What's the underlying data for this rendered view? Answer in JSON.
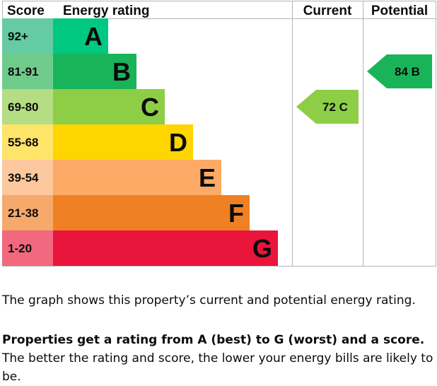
{
  "chart_data": {
    "type": "bar",
    "headers": {
      "score": "Score",
      "rating": "Energy rating",
      "current": "Current",
      "potential": "Potential"
    },
    "bands": [
      {
        "letter": "A",
        "range": "92+",
        "color": "#00c781",
        "score_bg": "#65cba5"
      },
      {
        "letter": "B",
        "range": "81-91",
        "color": "#19b459",
        "score_bg": "#6fcb8c"
      },
      {
        "letter": "C",
        "range": "69-80",
        "color": "#8dce46",
        "score_bg": "#b4dd84"
      },
      {
        "letter": "D",
        "range": "55-68",
        "color": "#ffd500",
        "score_bg": "#ffe46a"
      },
      {
        "letter": "E",
        "range": "39-54",
        "color": "#fcaa65",
        "score_bg": "#fdc89d"
      },
      {
        "letter": "F",
        "range": "21-38",
        "color": "#ef8023",
        "score_bg": "#f5a96b"
      },
      {
        "letter": "G",
        "range": "1-20",
        "color": "#e9153b",
        "score_bg": "#f1687f"
      }
    ],
    "current": {
      "value": 72,
      "letter": "C",
      "label": "72 C",
      "color": "#8dce46"
    },
    "potential": {
      "value": 84,
      "letter": "B",
      "label": "84 B",
      "color": "#19b459"
    }
  },
  "text": {
    "p1": "The graph shows this property’s current and potential energy rating.",
    "p2_bold": "Properties get a rating from A (best) to G (worst) and a score.",
    "p2_rest": " The better the rating and score, the lower your energy bills are likely to be."
  }
}
